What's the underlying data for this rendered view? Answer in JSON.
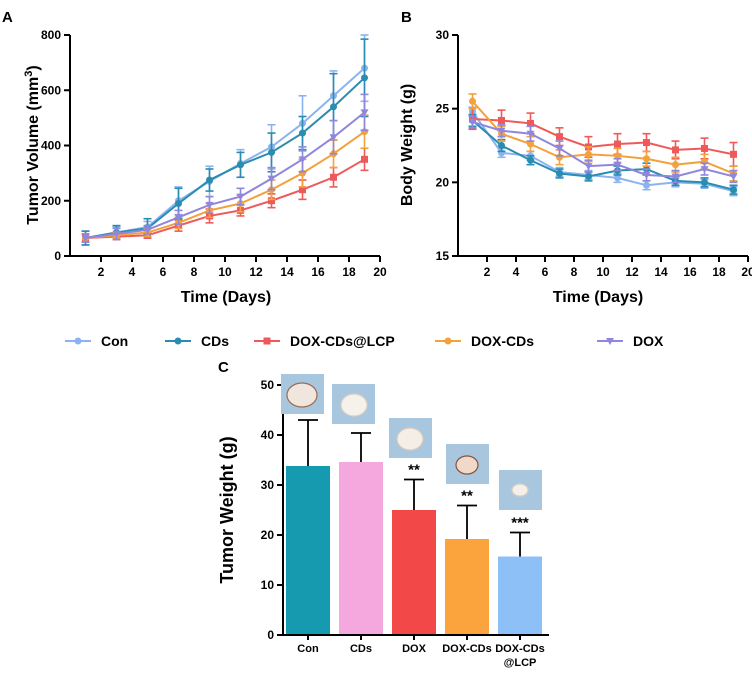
{
  "panels": {
    "a": "A",
    "b": "B",
    "c": "C"
  },
  "colors": {
    "Con": "#8ab4ef",
    "CDs": "#2a8cb0",
    "DOX-CDs@LCP": "#ee5a5a",
    "DOX-CDs": "#f3a13a",
    "DOX": "#8f86dd"
  },
  "legend": [
    "Con",
    "CDs",
    "DOX-CDs@LCP",
    "DOX-CDs",
    "DOX"
  ],
  "chart_data": [
    {
      "type": "line",
      "panel": "A",
      "xlabel": "Time (Days)",
      "ylabel_main": "Tumor Volume (mm",
      "ylabel_sup": "3",
      "ylabel_close": ")",
      "xlim": [
        0,
        20
      ],
      "ylim": [
        0,
        800
      ],
      "xticks": [
        2,
        4,
        6,
        8,
        10,
        12,
        14,
        16,
        18,
        20
      ],
      "yticks": [
        0,
        200,
        400,
        600,
        800
      ],
      "x": [
        1,
        3,
        5,
        7,
        9,
        11,
        13,
        15,
        17,
        19
      ],
      "series": [
        {
          "name": "Con",
          "values": [
            65,
            85,
            105,
            200,
            270,
            335,
            395,
            480,
            580,
            680
          ],
          "errors": [
            25,
            20,
            20,
            50,
            55,
            50,
            80,
            100,
            90,
            120
          ]
        },
        {
          "name": "CDs",
          "values": [
            65,
            85,
            100,
            190,
            275,
            330,
            375,
            445,
            540,
            645
          ],
          "errors": [
            25,
            25,
            35,
            55,
            40,
            45,
            70,
            60,
            120,
            140
          ]
        },
        {
          "name": "DOX-CDs@LCP",
          "values": [
            65,
            70,
            75,
            110,
            145,
            165,
            200,
            240,
            285,
            350
          ],
          "errors": [
            15,
            10,
            10,
            20,
            25,
            20,
            25,
            35,
            35,
            40
          ]
        },
        {
          "name": "DOX-CDs",
          "values": [
            65,
            75,
            85,
            120,
            165,
            190,
            240,
            300,
            370,
            450
          ],
          "errors": [
            15,
            10,
            15,
            20,
            25,
            30,
            35,
            50,
            50,
            60
          ]
        },
        {
          "name": "DOX",
          "values": [
            65,
            80,
            95,
            140,
            185,
            215,
            280,
            350,
            430,
            520
          ],
          "errors": [
            15,
            20,
            15,
            25,
            30,
            30,
            40,
            45,
            60,
            65
          ]
        }
      ]
    },
    {
      "type": "line",
      "panel": "B",
      "xlabel": "Time (Days)",
      "ylabel": "Body Weight (g)",
      "xlim": [
        0,
        20
      ],
      "ylim": [
        15,
        30
      ],
      "xticks": [
        2,
        4,
        6,
        8,
        10,
        12,
        14,
        16,
        18,
        20
      ],
      "yticks": [
        15,
        20,
        25,
        30
      ],
      "x": [
        1,
        3,
        5,
        7,
        9,
        11,
        13,
        15,
        17,
        19
      ],
      "series": [
        {
          "name": "Con",
          "values": [
            24.8,
            22.0,
            21.8,
            20.7,
            20.5,
            20.3,
            19.8,
            20.0,
            19.9,
            19.4
          ],
          "errors": [
            0.3,
            0.3,
            0.3,
            0.3,
            0.3,
            0.3,
            0.3,
            0.3,
            0.3,
            0.3
          ]
        },
        {
          "name": "CDs",
          "values": [
            24.2,
            22.5,
            21.5,
            20.6,
            20.4,
            20.8,
            20.9,
            20.1,
            20.0,
            19.5
          ],
          "errors": [
            0.4,
            0.4,
            0.3,
            0.3,
            0.3,
            0.3,
            0.4,
            0.3,
            0.3,
            0.3
          ]
        },
        {
          "name": "DOX-CDs@LCP",
          "values": [
            24.3,
            24.2,
            24.0,
            23.1,
            22.4,
            22.6,
            22.7,
            22.2,
            22.3,
            21.9
          ],
          "errors": [
            0.7,
            0.7,
            0.7,
            0.6,
            0.7,
            0.7,
            0.6,
            0.6,
            0.7,
            0.8
          ]
        },
        {
          "name": "DOX-CDs",
          "values": [
            25.5,
            23.3,
            22.6,
            21.7,
            21.9,
            21.8,
            21.6,
            21.2,
            21.4,
            20.6
          ],
          "errors": [
            0.5,
            0.5,
            0.5,
            0.5,
            0.5,
            0.5,
            0.5,
            0.5,
            0.5,
            0.5
          ]
        },
        {
          "name": "DOX",
          "values": [
            24.1,
            23.5,
            23.3,
            22.3,
            21.1,
            21.2,
            20.5,
            20.4,
            20.9,
            20.4
          ],
          "errors": [
            0.4,
            0.4,
            0.5,
            0.5,
            0.4,
            0.4,
            0.4,
            0.4,
            0.4,
            0.4
          ]
        }
      ]
    },
    {
      "type": "bar",
      "panel": "C",
      "ylabel": "Tumor Weight (g)",
      "ylim": [
        0,
        50
      ],
      "yticks": [
        0,
        10,
        20,
        30,
        40,
        50
      ],
      "categories": [
        "Con",
        "CDs",
        "DOX",
        "DOX-CDs",
        "DOX-CDs@LCP"
      ],
      "category_labels": [
        [
          "Con"
        ],
        [
          "CDs"
        ],
        [
          "DOX"
        ],
        [
          "DOX-CDs"
        ],
        [
          "DOX-CDs",
          "@LCP"
        ]
      ],
      "values": [
        33.8,
        34.6,
        25.0,
        19.2,
        15.7
      ],
      "errors": [
        9.2,
        5.8,
        6.1,
        6.7,
        4.8
      ],
      "significance": [
        "",
        "",
        "**",
        "**",
        "***"
      ],
      "bar_colors": [
        "#159aaf",
        "#f4a8de",
        "#f24848",
        "#fba43d",
        "#8cc0f6"
      ]
    }
  ]
}
